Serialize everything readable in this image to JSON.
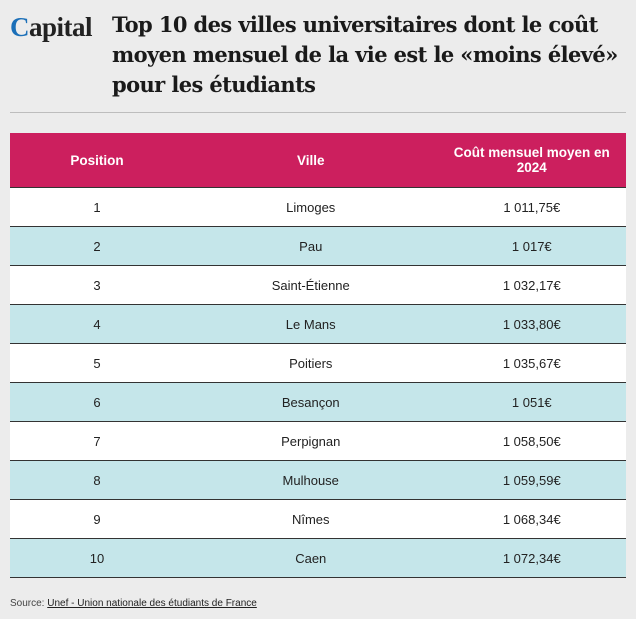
{
  "header": {
    "logo": "Capital",
    "title": "Top 10 des villes universitaires dont le coût moyen mensuel de la vie est le «moins élevé» pour les étudiants"
  },
  "table": {
    "columns": [
      "Position",
      "Ville",
      "Coût mensuel moyen en 2024"
    ],
    "rows": [
      [
        "1",
        "Limoges",
        "1 011,75€"
      ],
      [
        "2",
        "Pau",
        "1 017€"
      ],
      [
        "3",
        "Saint-Étienne",
        "1 032,17€"
      ],
      [
        "4",
        "Le Mans",
        "1 033,80€"
      ],
      [
        "5",
        "Poitiers",
        "1 035,67€"
      ],
      [
        "6",
        "Besançon",
        "1 051€"
      ],
      [
        "7",
        "Perpignan",
        "1 058,50€"
      ],
      [
        "8",
        "Mulhouse",
        "1 059,59€"
      ],
      [
        "9",
        "Nîmes",
        "1 068,34€"
      ],
      [
        "10",
        "Caen",
        "1 072,34€"
      ]
    ]
  },
  "source": {
    "label": "Source:",
    "link": "Unef - Union nationale des étudiants de France"
  }
}
